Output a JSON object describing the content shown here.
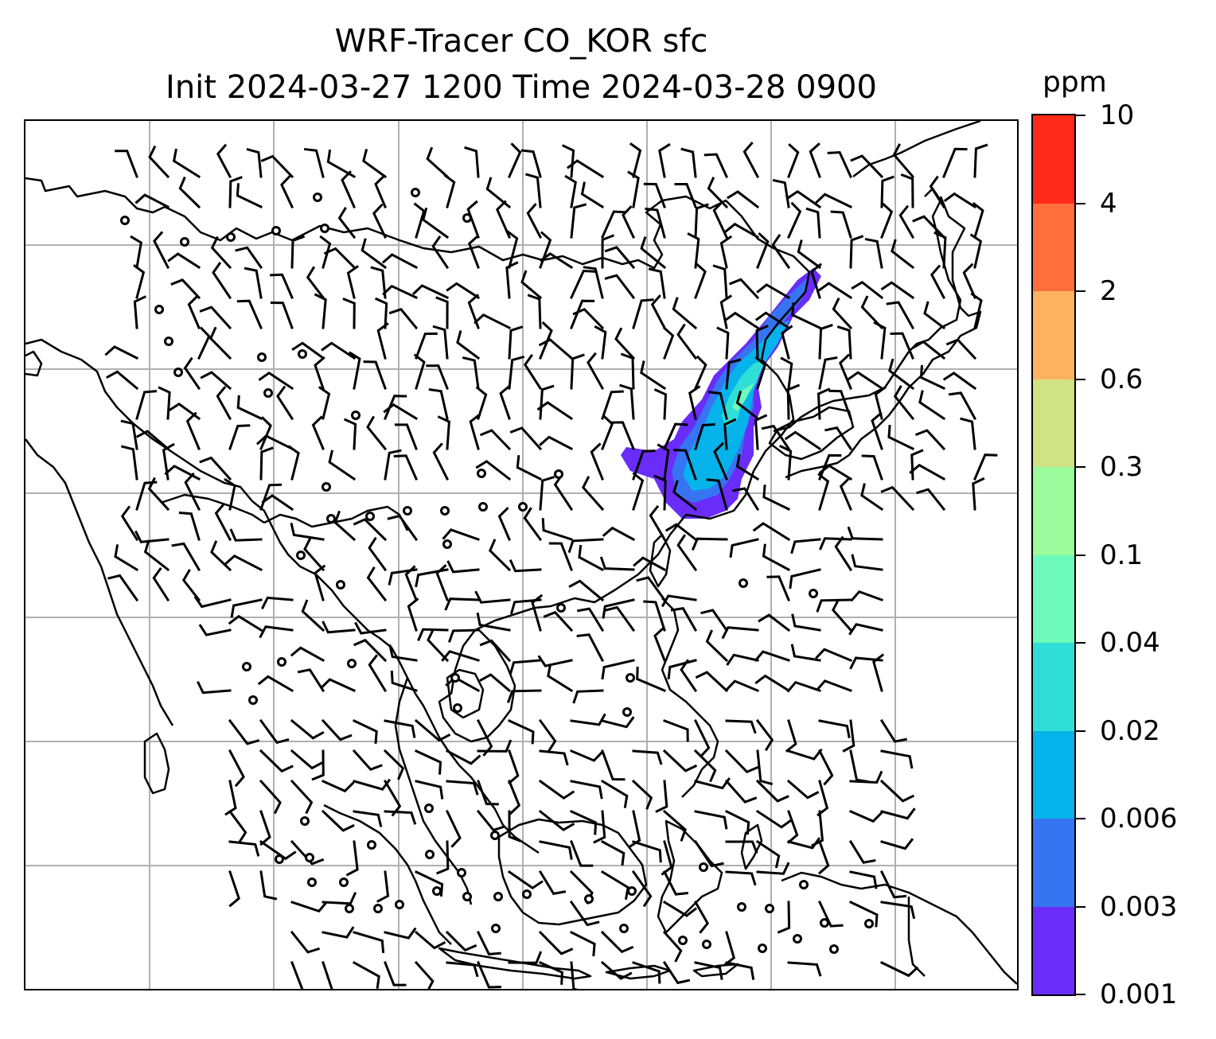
{
  "title": {
    "line1": "WRF-Tracer CO_KOR sfc",
    "line2": "Init 2024-03-27 1200 Time 2024-03-28 0900"
  },
  "colorbar": {
    "unit": "ppm",
    "levels": [
      "0.001",
      "0.003",
      "0.006",
      "0.02",
      "0.04",
      "0.1",
      "0.3",
      "0.6",
      "2",
      "4",
      "10"
    ],
    "colors": [
      "#6a2cf8",
      "#3674f2",
      "#06b3ea",
      "#2fdfd7",
      "#6dfabb",
      "#9cfb9d",
      "#d1e285",
      "#fdb262",
      "#ff6e3b",
      "#ff2a19"
    ]
  },
  "map": {
    "coastline_color": "#000000",
    "grid_color": "#b0b0b0",
    "plume": {
      "field": "CO_KOR surface tracer",
      "region": "Yellow Sea / Korean Peninsula to NE China",
      "dominant_band": "0.006-0.02",
      "max_band": "0.04-0.1"
    },
    "wind_barbs": "surface wind barbs plotted on regular grid"
  }
}
